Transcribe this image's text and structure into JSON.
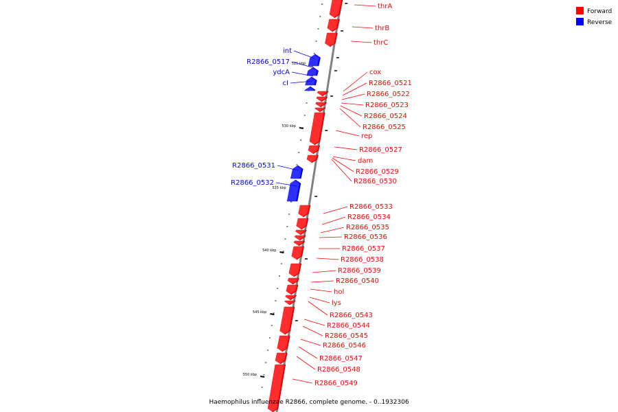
{
  "title": "Haemophilus influenzae R2866, complete genome. - 0..1932306",
  "colors": {
    "forward": "#ff0000",
    "reverse": "#0000ff",
    "backbone": "#808080",
    "tick": "#000000"
  },
  "legend": [
    {
      "label": "Forward",
      "color": "#ff0000"
    },
    {
      "label": "Reverse",
      "color": "#0000ff"
    }
  ],
  "scale": {
    "unit": "kbp",
    "labeled_ticks": [
      "525 kbp",
      "530 kbp",
      "535 kbp",
      "540 kbp",
      "545 kbp",
      "550 kbp"
    ]
  },
  "genes": [
    {
      "name": "thrA",
      "strand": "forward"
    },
    {
      "name": "thrB",
      "strand": "forward"
    },
    {
      "name": "thrC",
      "strand": "forward"
    },
    {
      "name": "int",
      "strand": "reverse"
    },
    {
      "name": "R2866_0517",
      "strand": "reverse"
    },
    {
      "name": "ydcA",
      "strand": "reverse"
    },
    {
      "name": "cI",
      "strand": "reverse"
    },
    {
      "name": "cox",
      "strand": "forward"
    },
    {
      "name": "R2866_0521",
      "strand": "forward"
    },
    {
      "name": "R2866_0522",
      "strand": "forward"
    },
    {
      "name": "R2866_0523",
      "strand": "forward"
    },
    {
      "name": "R2866_0524",
      "strand": "forward"
    },
    {
      "name": "R2866_0525",
      "strand": "forward"
    },
    {
      "name": "rep",
      "strand": "forward"
    },
    {
      "name": "R2866_0527",
      "strand": "forward"
    },
    {
      "name": "dam",
      "strand": "forward"
    },
    {
      "name": "R2866_0529",
      "strand": "forward"
    },
    {
      "name": "R2866_0530",
      "strand": "forward"
    },
    {
      "name": "R2866_0531",
      "strand": "reverse"
    },
    {
      "name": "R2866_0532",
      "strand": "reverse"
    },
    {
      "name": "R2866_0533",
      "strand": "forward"
    },
    {
      "name": "R2866_0534",
      "strand": "forward"
    },
    {
      "name": "R2866_0535",
      "strand": "forward"
    },
    {
      "name": "R2866_0536",
      "strand": "forward"
    },
    {
      "name": "R2866_0537",
      "strand": "forward"
    },
    {
      "name": "R2866_0538",
      "strand": "forward"
    },
    {
      "name": "R2866_0539",
      "strand": "forward"
    },
    {
      "name": "R2866_0540",
      "strand": "forward"
    },
    {
      "name": "hol",
      "strand": "forward"
    },
    {
      "name": "lys",
      "strand": "forward"
    },
    {
      "name": "R2866_0543",
      "strand": "forward"
    },
    {
      "name": "R2866_0544",
      "strand": "forward"
    },
    {
      "name": "R2866_0545",
      "strand": "forward"
    },
    {
      "name": "R2866_0546",
      "strand": "forward"
    },
    {
      "name": "R2866_0547",
      "strand": "forward"
    },
    {
      "name": "R2866_0548",
      "strand": "forward"
    },
    {
      "name": "R2866_0549",
      "strand": "forward"
    }
  ]
}
